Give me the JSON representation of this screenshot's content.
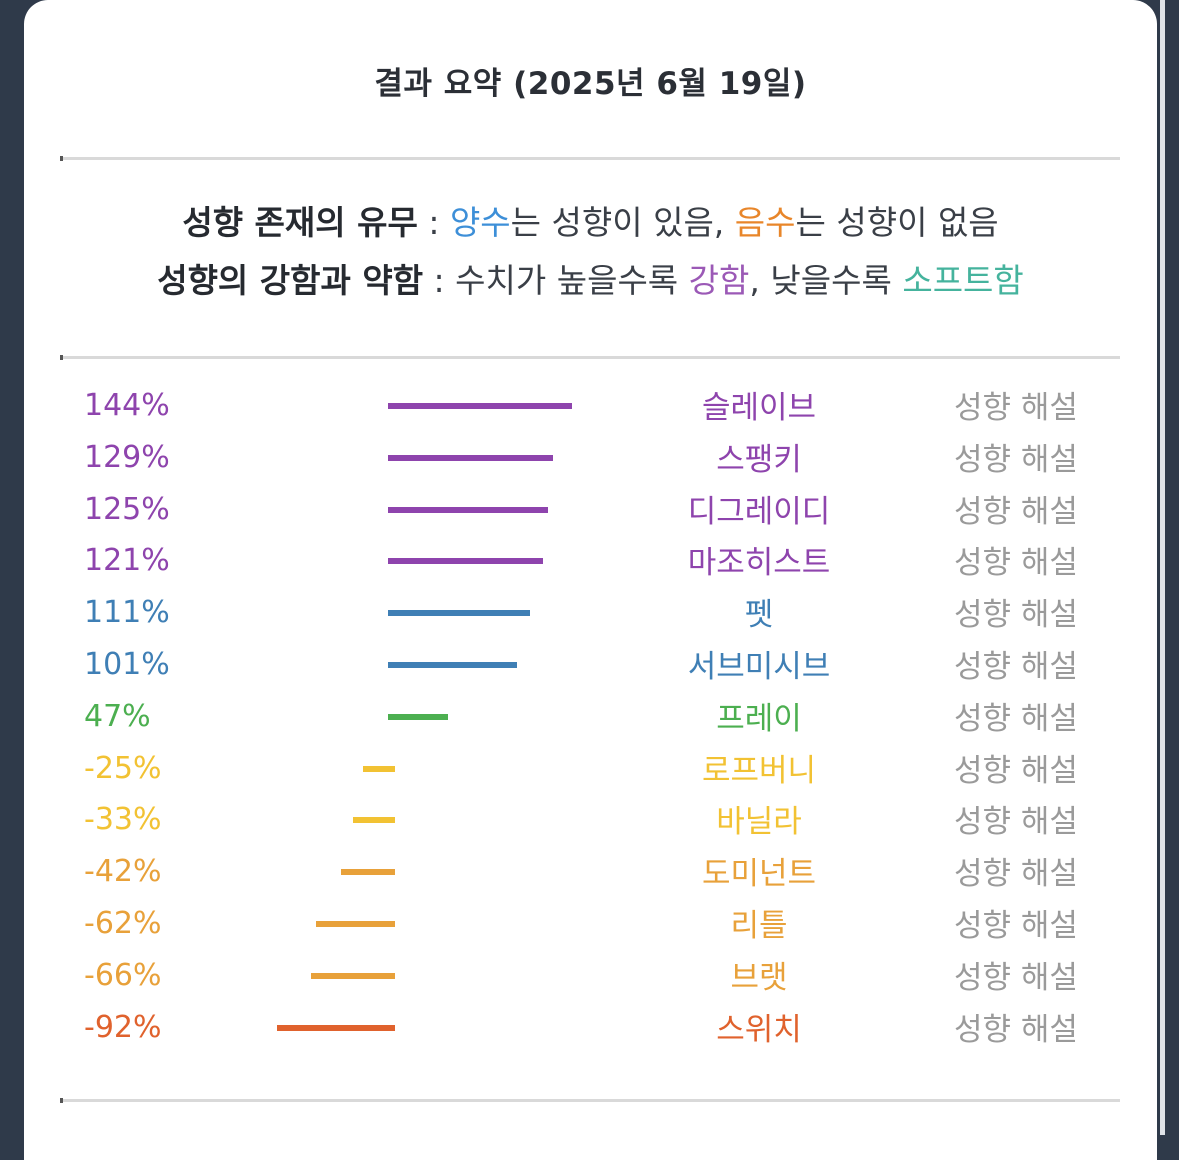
{
  "title": "결과 요약 (2025년 6월 19일)",
  "legend": {
    "line1": {
      "label": "성향 존재의 유무",
      "sep": " : ",
      "pos_word": "양수",
      "pos_rest": "는 성향이 있음, ",
      "neg_word": "음수",
      "neg_rest": "는 성향이 없음"
    },
    "line2": {
      "label": "성향의 강함과 약함",
      "sep": " : 수치가 높을수록 ",
      "strong_word": "강함",
      "mid": ", 낮을수록 ",
      "soft_word": "소프트함"
    }
  },
  "colors": {
    "purple": "#8e44ad",
    "blue": "#3f7fb5",
    "green": "#4caf50",
    "yellow": "#f2c233",
    "orange": "#e8a13a",
    "red": "#e0622d",
    "sky": "#3d8fd8",
    "teal": "#45b39d",
    "gray": "#9a9a9a"
  },
  "results": [
    {
      "percent": "144%",
      "value": 144,
      "name": "슬레이브",
      "link": "성향 해설",
      "color": "#8e44ad"
    },
    {
      "percent": "129%",
      "value": 129,
      "name": "스팽키",
      "link": "성향 해설",
      "color": "#8e44ad"
    },
    {
      "percent": "125%",
      "value": 125,
      "name": "디그레이디",
      "link": "성향 해설",
      "color": "#8e44ad"
    },
    {
      "percent": "121%",
      "value": 121,
      "name": "마조히스트",
      "link": "성향 해설",
      "color": "#8e44ad"
    },
    {
      "percent": "111%",
      "value": 111,
      "name": "펫",
      "link": "성향 해설",
      "color": "#3f7fb5"
    },
    {
      "percent": "101%",
      "value": 101,
      "name": "서브미시브",
      "link": "성향 해설",
      "color": "#3f7fb5"
    },
    {
      "percent": "47%",
      "value": 47,
      "name": "프레이",
      "link": "성향 해설",
      "color": "#4caf50"
    },
    {
      "percent": "-25%",
      "value": -25,
      "name": "로프버니",
      "link": "성향 해설",
      "color": "#f2c233"
    },
    {
      "percent": "-33%",
      "value": -33,
      "name": "바닐라",
      "link": "성향 해설",
      "color": "#f2c233"
    },
    {
      "percent": "-42%",
      "value": -42,
      "name": "도미넌트",
      "link": "성향 해설",
      "color": "#e8a13a"
    },
    {
      "percent": "-62%",
      "value": -62,
      "name": "리틀",
      "link": "성향 해설",
      "color": "#e8a13a"
    },
    {
      "percent": "-66%",
      "value": -66,
      "name": "브랫",
      "link": "성향 해설",
      "color": "#e8a13a"
    },
    {
      "percent": "-92%",
      "value": -92,
      "name": "스위치",
      "link": "성향 해설",
      "color": "#e0622d"
    }
  ]
}
